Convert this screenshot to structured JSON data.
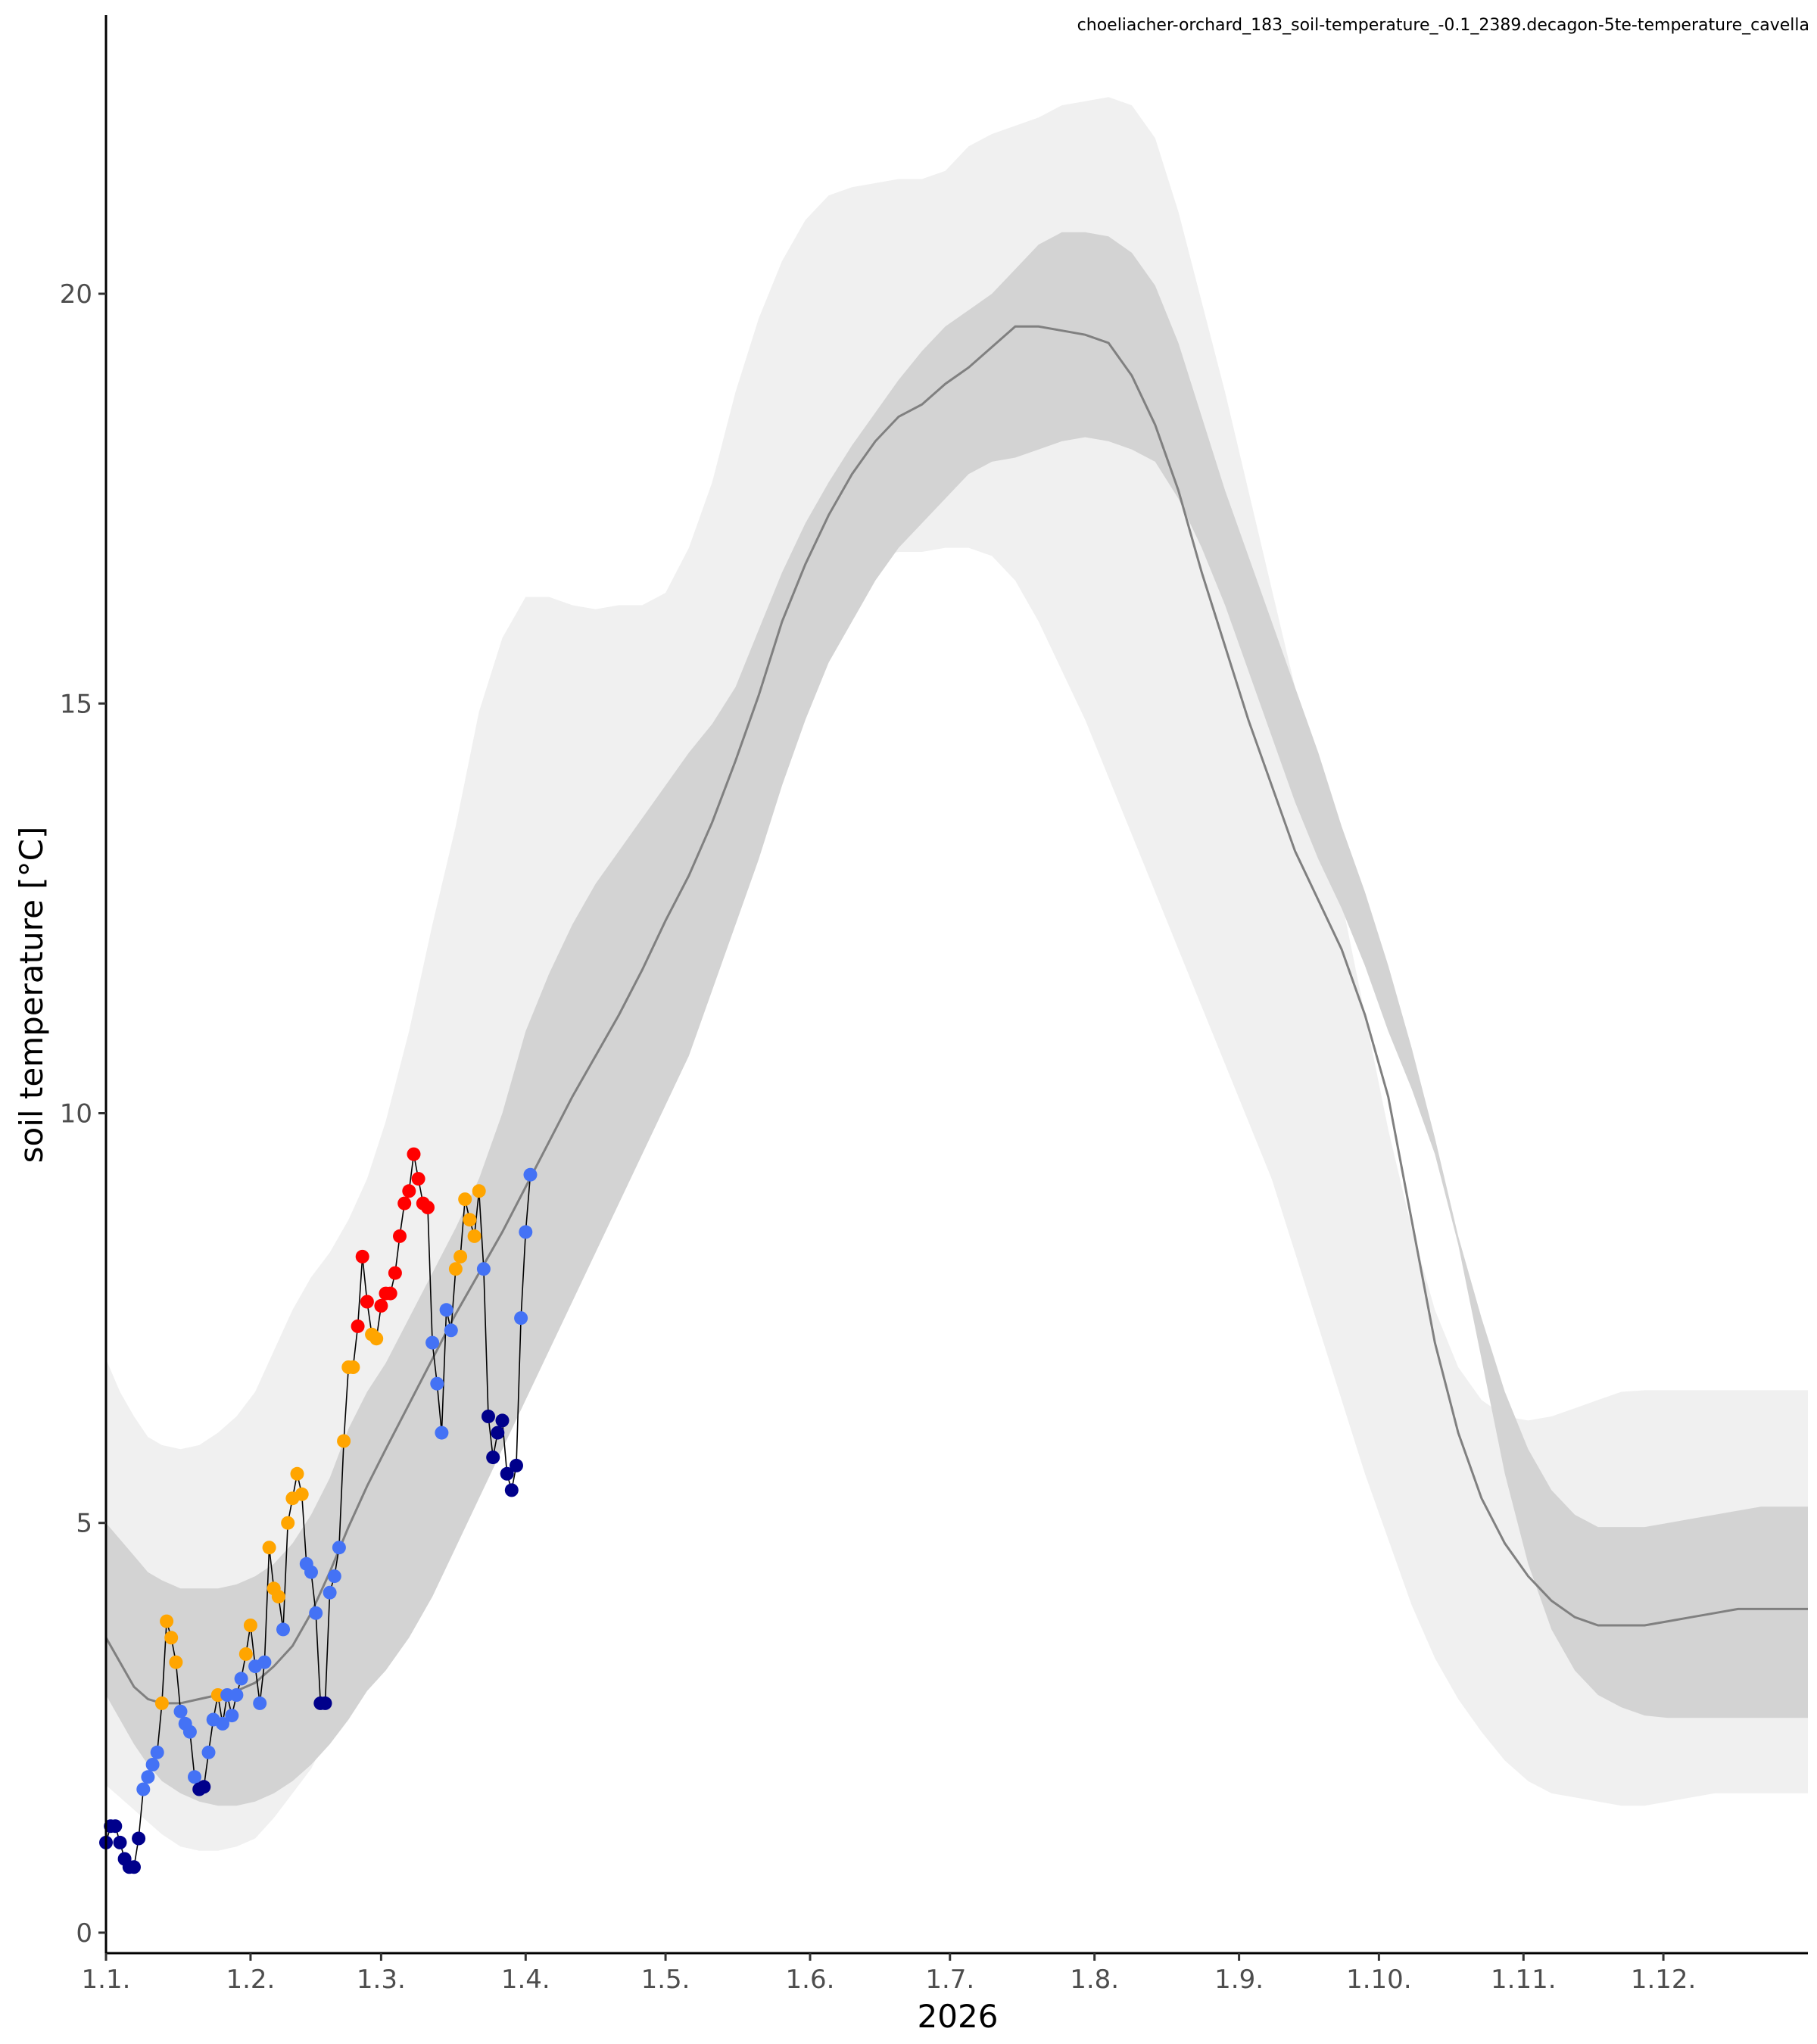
{
  "chart_data": {
    "type": "line",
    "title": "choeliacher-orchard_183_soil-temperature_-0.1_2389.decagon-5te-temperature_cavella",
    "xlabel": "2026",
    "ylabel": "soil temperature [°C]",
    "xlim": [
      0,
      365
    ],
    "ylim": [
      -0.25,
      23.4
    ],
    "x_tick_labels": [
      "1.1.",
      "1.2.",
      "1.3.",
      "1.4.",
      "1.5.",
      "1.6.",
      "1.7.",
      "1.8.",
      "1.9.",
      "1.10.",
      "1.11.",
      "1.12."
    ],
    "x_tick_days": [
      0,
      31,
      59,
      90,
      120,
      151,
      181,
      212,
      243,
      273,
      304,
      334
    ],
    "y_ticks": [
      0,
      5,
      10,
      15,
      20
    ],
    "grid": false,
    "colors": {
      "outer_band": "#f0f0f0",
      "inner_band": "#d3d3d3",
      "median_line": "#808080",
      "observation_line": "#000000",
      "very_cold": "#00008b",
      "cold": "#4472f5",
      "warm": "#ffa500",
      "very_warm": "#ff0000"
    },
    "climatology": {
      "x": [
        0,
        3,
        6,
        9,
        12,
        16,
        20,
        24,
        28,
        32,
        36,
        40,
        44,
        48,
        52,
        56,
        60,
        65,
        70,
        75,
        80,
        85,
        90,
        95,
        100,
        105,
        110,
        115,
        120,
        125,
        130,
        135,
        140,
        145,
        150,
        155,
        160,
        165,
        170,
        175,
        180,
        185,
        190,
        195,
        200,
        205,
        210,
        215,
        220,
        225,
        230,
        235,
        240,
        245,
        250,
        255,
        260,
        265,
        270,
        275,
        280,
        285,
        290,
        295,
        300,
        305,
        310,
        315,
        320,
        325,
        330,
        335,
        340,
        345,
        350,
        355,
        360,
        365
      ],
      "q10": [
        1.8,
        1.65,
        1.5,
        1.35,
        1.2,
        1.05,
        1.0,
        1.0,
        1.05,
        1.15,
        1.4,
        1.7,
        2.0,
        2.45,
        3.0,
        3.4,
        3.45,
        3.9,
        4.5,
        5.2,
        5.9,
        6.5,
        7.2,
        7.8,
        8.3,
        8.9,
        9.6,
        10.4,
        11.3,
        12.3,
        13.3,
        14.3,
        15.1,
        15.7,
        16.1,
        16.4,
        16.6,
        16.8,
        16.85,
        16.85,
        16.9,
        16.9,
        16.8,
        16.5,
        16.0,
        15.4,
        14.8,
        14.1,
        13.4,
        12.7,
        12.0,
        11.3,
        10.6,
        9.9,
        9.2,
        8.3,
        7.4,
        6.5,
        5.6,
        4.8,
        4.0,
        3.35,
        2.85,
        2.45,
        2.1,
        1.85,
        1.7,
        1.65,
        1.6,
        1.55,
        1.55,
        1.6,
        1.65,
        1.7,
        1.7,
        1.7,
        1.7,
        1.7
      ],
      "q25": [
        2.9,
        2.6,
        2.3,
        2.05,
        1.85,
        1.7,
        1.6,
        1.55,
        1.55,
        1.6,
        1.7,
        1.85,
        2.05,
        2.3,
        2.6,
        2.95,
        3.2,
        3.6,
        4.1,
        4.7,
        5.3,
        5.9,
        6.5,
        7.1,
        7.7,
        8.3,
        8.9,
        9.5,
        10.1,
        10.7,
        11.5,
        12.3,
        13.1,
        14.0,
        14.8,
        15.5,
        16.0,
        16.5,
        16.9,
        17.2,
        17.5,
        17.8,
        17.95,
        18.0,
        18.1,
        18.2,
        18.25,
        18.2,
        18.1,
        17.95,
        17.5,
        16.9,
        16.2,
        15.4,
        14.6,
        13.8,
        13.1,
        12.5,
        11.8,
        11.0,
        10.3,
        9.5,
        8.4,
        7.0,
        5.6,
        4.5,
        3.7,
        3.2,
        2.9,
        2.75,
        2.65,
        2.62,
        2.62,
        2.62,
        2.62,
        2.62,
        2.62,
        2.62
      ],
      "median": [
        3.6,
        3.3,
        3.0,
        2.85,
        2.8,
        2.8,
        2.85,
        2.9,
        2.95,
        3.05,
        3.25,
        3.5,
        3.9,
        4.4,
        4.95,
        5.45,
        5.9,
        6.45,
        7.0,
        7.55,
        8.05,
        8.55,
        9.1,
        9.65,
        10.2,
        10.7,
        11.2,
        11.75,
        12.35,
        12.9,
        13.55,
        14.3,
        15.1,
        16.0,
        16.7,
        17.3,
        17.8,
        18.2,
        18.5,
        18.65,
        18.9,
        19.1,
        19.35,
        19.6,
        19.6,
        19.55,
        19.5,
        19.4,
        19.0,
        18.4,
        17.6,
        16.6,
        15.7,
        14.8,
        14.0,
        13.2,
        12.6,
        12.0,
        11.2,
        10.2,
        8.7,
        7.2,
        6.1,
        5.3,
        4.75,
        4.35,
        4.05,
        3.85,
        3.75,
        3.75,
        3.75,
        3.8,
        3.85,
        3.9,
        3.95,
        3.95,
        3.95,
        3.95
      ],
      "q75": [
        5.0,
        4.8,
        4.6,
        4.4,
        4.3,
        4.2,
        4.2,
        4.2,
        4.25,
        4.35,
        4.5,
        4.75,
        5.1,
        5.55,
        6.15,
        6.6,
        6.95,
        7.5,
        8.05,
        8.6,
        9.2,
        10.0,
        11.0,
        11.7,
        12.3,
        12.8,
        13.2,
        13.6,
        14.0,
        14.4,
        14.75,
        15.2,
        15.9,
        16.6,
        17.2,
        17.7,
        18.15,
        18.55,
        18.95,
        19.3,
        19.6,
        19.8,
        20.0,
        20.3,
        20.6,
        20.75,
        20.75,
        20.7,
        20.5,
        20.1,
        19.4,
        18.5,
        17.6,
        16.8,
        16.0,
        15.2,
        14.4,
        13.5,
        12.7,
        11.8,
        10.8,
        9.7,
        8.5,
        7.5,
        6.6,
        5.9,
        5.4,
        5.1,
        4.95,
        4.95,
        4.95,
        5.0,
        5.05,
        5.1,
        5.15,
        5.2,
        5.2,
        5.2
      ],
      "q90": [
        7.0,
        6.6,
        6.3,
        6.05,
        5.95,
        5.9,
        5.95,
        6.1,
        6.3,
        6.6,
        7.1,
        7.6,
        8.0,
        8.3,
        8.7,
        9.2,
        9.9,
        11.0,
        12.3,
        13.5,
        14.9,
        15.8,
        16.3,
        16.3,
        16.2,
        16.15,
        16.2,
        16.2,
        16.35,
        16.9,
        17.7,
        18.8,
        19.7,
        20.4,
        20.9,
        21.2,
        21.3,
        21.35,
        21.4,
        21.4,
        21.5,
        21.8,
        21.95,
        22.05,
        22.15,
        22.3,
        22.35,
        22.4,
        22.3,
        21.9,
        21.0,
        19.9,
        18.8,
        17.6,
        16.4,
        15.2,
        13.9,
        12.6,
        11.2,
        9.8,
        8.6,
        7.6,
        6.9,
        6.5,
        6.3,
        6.25,
        6.3,
        6.4,
        6.5,
        6.6,
        6.62,
        6.62,
        6.62,
        6.62,
        6.62,
        6.62,
        6.62,
        6.62
      ]
    },
    "observations": {
      "x": [
        0,
        1,
        2,
        3,
        4,
        5,
        6,
        7,
        8,
        9,
        10,
        11,
        12,
        13,
        14,
        15,
        16,
        17,
        18,
        19,
        20,
        21,
        22,
        23,
        24,
        25,
        26,
        27,
        28,
        29,
        30,
        31,
        32,
        33,
        34,
        35,
        36,
        37,
        38,
        39,
        40,
        41,
        42,
        43,
        44,
        45,
        46,
        47,
        48,
        49,
        50,
        51,
        52,
        53,
        54,
        55,
        56,
        57,
        58,
        59,
        60,
        61,
        62,
        63,
        64,
        65,
        66,
        67,
        68,
        69,
        70,
        71,
        72,
        73,
        74,
        75,
        76,
        77,
        78,
        79,
        80,
        81,
        82,
        83,
        84,
        85,
        86,
        87,
        88,
        89,
        90,
        91
      ],
      "y": [
        1.1,
        1.3,
        1.3,
        1.1,
        0.9,
        0.8,
        0.8,
        1.15,
        1.75,
        1.9,
        2.05,
        2.2,
        2.8,
        3.8,
        3.6,
        3.3,
        2.7,
        2.55,
        2.45,
        1.9,
        1.75,
        1.78,
        2.2,
        2.6,
        2.9,
        2.55,
        2.9,
        2.65,
        2.9,
        3.1,
        3.4,
        3.75,
        3.25,
        2.8,
        3.3,
        4.7,
        4.2,
        4.1,
        3.7,
        5.0,
        5.3,
        5.6,
        5.35,
        4.5,
        4.4,
        3.9,
        2.8,
        2.8,
        4.15,
        4.35,
        4.7,
        6.0,
        6.9,
        6.9,
        7.4,
        8.25,
        7.7,
        7.3,
        7.25,
        7.65,
        7.8,
        7.8,
        8.05,
        8.5,
        8.9,
        9.05,
        9.5,
        9.2,
        8.9,
        8.85,
        7.2,
        6.7,
        6.1,
        7.6,
        7.35,
        8.1,
        8.25,
        8.95,
        8.7,
        8.5,
        9.05,
        8.1,
        6.3,
        5.8,
        6.1,
        6.25,
        5.6,
        5.4,
        5.7,
        7.5,
        8.55,
        9.25
      ],
      "category": [
        "very cold",
        "very cold",
        "very cold",
        "very cold",
        "very cold",
        "very cold",
        "very cold",
        "very cold",
        "cold",
        "cold",
        "cold",
        "cold",
        "warm",
        "warm",
        "warm",
        "warm",
        "cold",
        "cold",
        "cold",
        "cold",
        "very cold",
        "very cold",
        "cold",
        "cold",
        "warm",
        "cold",
        "cold",
        "cold",
        "cold",
        "cold",
        "warm",
        "warm",
        "cold",
        "cold",
        "cold",
        "warm",
        "warm",
        "warm",
        "cold",
        "warm",
        "warm",
        "warm",
        "warm",
        "cold",
        "cold",
        "cold",
        "very cold",
        "very cold",
        "cold",
        "cold",
        "cold",
        "warm",
        "warm",
        "warm",
        "very warm",
        "very warm",
        "very warm",
        "warm",
        "warm",
        "very warm",
        "very warm",
        "very warm",
        "very warm",
        "very warm",
        "very warm",
        "very warm",
        "very warm",
        "very warm",
        "very warm",
        "very warm",
        "cold",
        "cold",
        "cold",
        "cold",
        "cold",
        "warm",
        "warm",
        "warm",
        "warm",
        "warm",
        "warm",
        "cold",
        "very cold",
        "very cold",
        "very cold",
        "very cold",
        "very cold",
        "very cold",
        "very cold",
        "cold",
        "cold",
        "cold"
      ]
    }
  }
}
